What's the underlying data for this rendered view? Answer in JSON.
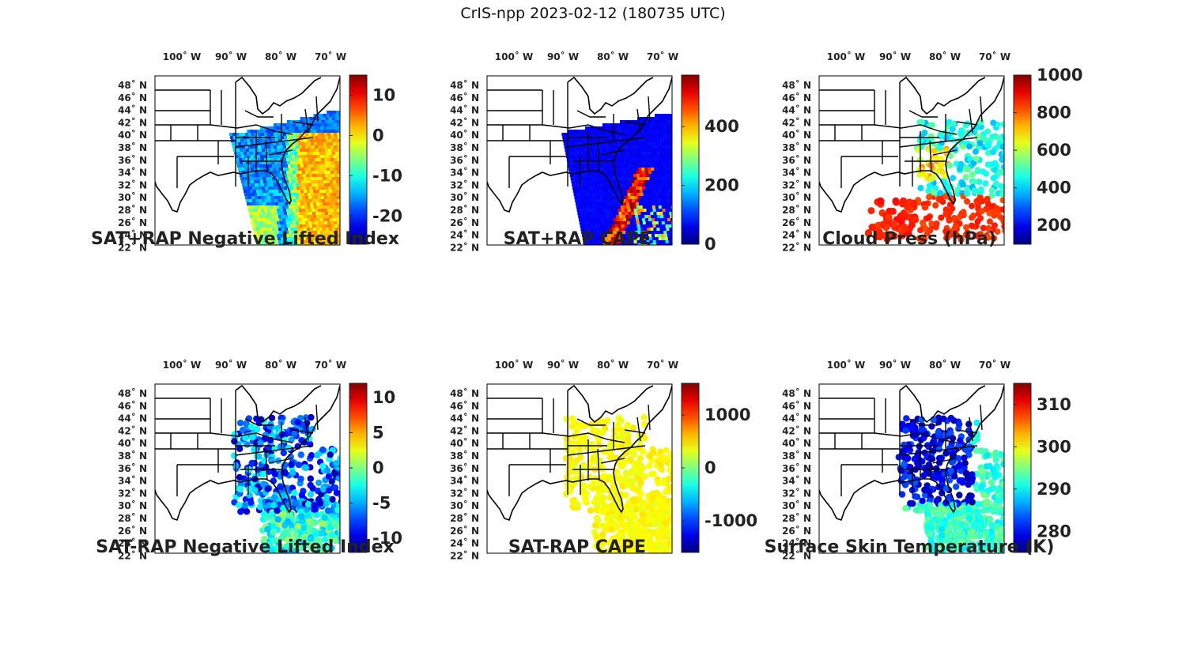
{
  "title": "CrIS-npp 2023-02-12 (180735 UTC)",
  "lon_labels": [
    "100˚ W",
    "90˚ W",
    "80˚ W",
    "70˚ W"
  ],
  "lat_labels": [
    "48˚ N",
    "46˚ N",
    "44˚ N",
    "42˚ N",
    "40˚ N",
    "38˚ N",
    "36˚ N",
    "34˚ N",
    "32˚ N",
    "30˚ N",
    "28˚ N",
    "26˚ N",
    "24˚ N",
    "22˚ N"
  ],
  "panels": [
    {
      "title": "SAT+RAP Negative Lifted Index",
      "colorbar": {
        "min": -27,
        "max": 15,
        "ticks": [
          "10",
          "0",
          "-10",
          "-20"
        ],
        "tick_values": [
          10,
          0,
          -10,
          -20
        ]
      }
    },
    {
      "title": "SAT+RAP CAPE",
      "colorbar": {
        "min": 0,
        "max": 575,
        "ticks": [
          "400",
          "200",
          "0"
        ],
        "tick_values": [
          400,
          200,
          0
        ]
      }
    },
    {
      "title": "Cloud Press (hPa)",
      "colorbar": {
        "min": 100,
        "max": 1000,
        "ticks": [
          "1000",
          "800",
          "600",
          "400",
          "200"
        ],
        "tick_values": [
          1000,
          800,
          600,
          400,
          200
        ]
      }
    },
    {
      "title": "SAT-RAP Negative Lifted Index",
      "colorbar": {
        "min": -12,
        "max": 12,
        "ticks": [
          "10",
          "5",
          "0",
          "-5",
          "-10"
        ],
        "tick_values": [
          10,
          5,
          0,
          -5,
          -10
        ]
      }
    },
    {
      "title": "SAT-RAP CAPE",
      "colorbar": {
        "min": -1600,
        "max": 1600,
        "ticks": [
          "1000",
          "0",
          "-1000"
        ],
        "tick_values": [
          1000,
          0,
          -1000
        ]
      }
    },
    {
      "title": "Surface Skin Temperature (K)",
      "colorbar": {
        "min": 275,
        "max": 315,
        "ticks": [
          "310",
          "300",
          "290",
          "280"
        ],
        "tick_values": [
          310,
          300,
          290,
          280
        ]
      }
    }
  ]
}
